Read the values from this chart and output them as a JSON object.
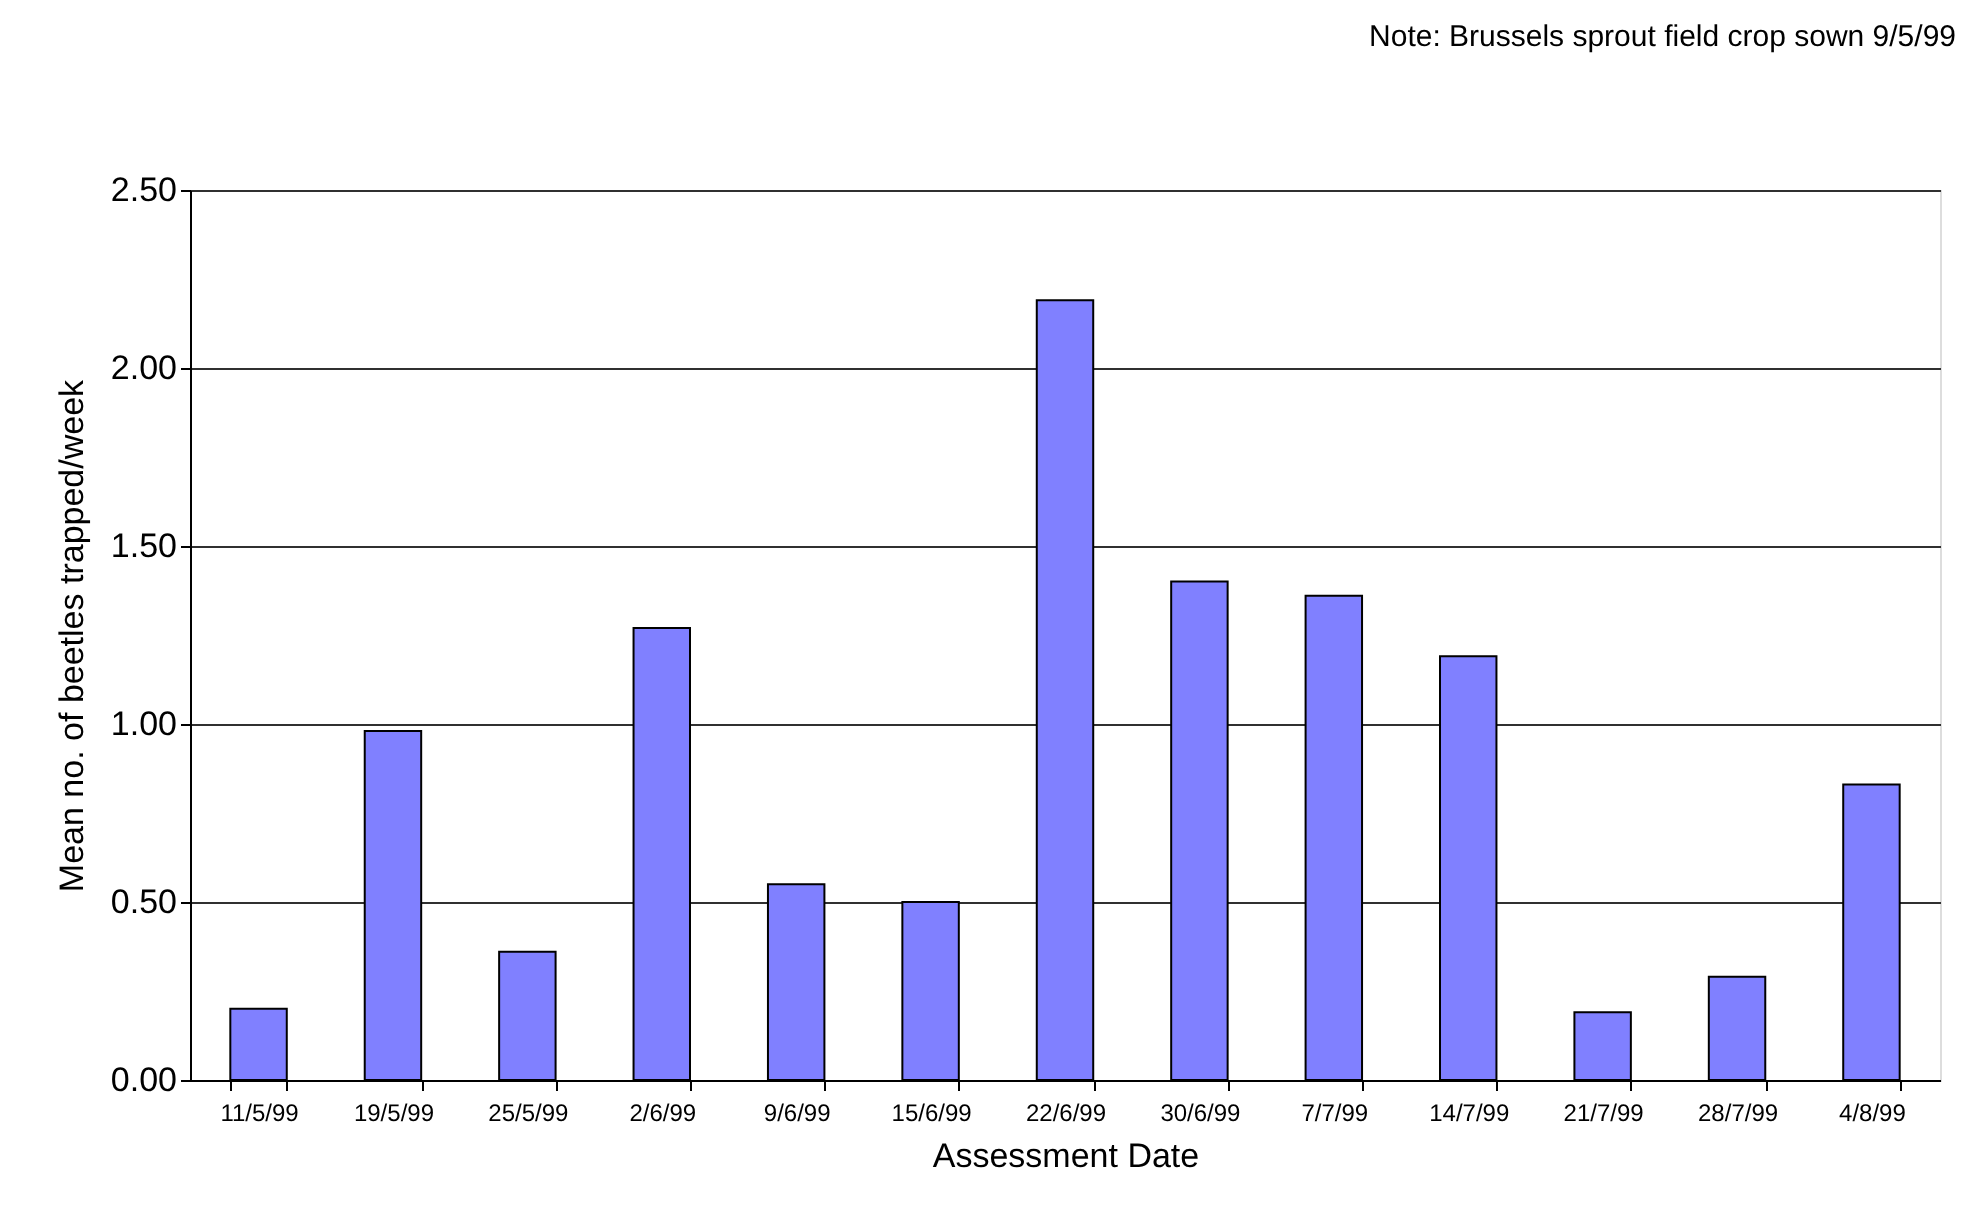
{
  "chart_data": {
    "type": "bar",
    "annotations": [
      "Note: Brussels sprout field crop sown 9/5/99"
    ],
    "xlabel": "Assessment Date",
    "ylabel": "Mean no. of beetles trapped/week",
    "categories": [
      "11/5/99",
      "19/5/99",
      "25/5/99",
      "2/6/99",
      "9/6/99",
      "15/6/99",
      "22/6/99",
      "30/6/99",
      "7/7/99",
      "14/7/99",
      "21/7/99",
      "28/7/99",
      "4/8/99"
    ],
    "values": [
      0.2,
      0.98,
      0.36,
      1.27,
      0.55,
      0.5,
      2.19,
      1.4,
      1.36,
      1.19,
      0.19,
      0.29,
      0.83
    ],
    "color": "#8080ff",
    "ylim": [
      0,
      2.5
    ],
    "yticks": [
      {
        "value": 0,
        "label": "0.00"
      },
      {
        "value": 0.5,
        "label": "0.50"
      },
      {
        "value": 1,
        "label": "1.00"
      },
      {
        "value": 1.5,
        "label": "1.50"
      },
      {
        "value": 2,
        "label": "2.00"
      },
      {
        "value": 2.5,
        "label": "2.50"
      }
    ],
    "grid": "y"
  }
}
